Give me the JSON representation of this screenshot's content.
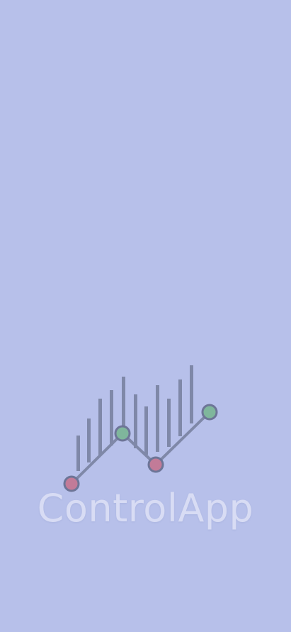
{
  "splash": {
    "app_name": "ControlApp",
    "logo_icon": "stock-chart-logo-icon"
  },
  "colors": {
    "background": "#b7c0ea",
    "bars": "#7f88a8",
    "line": "#7f88a8",
    "node_red": "#c27b98",
    "node_green": "#7fb69c",
    "node_stroke": "#6d7597",
    "app_name_text": "#d8dcf4"
  }
}
